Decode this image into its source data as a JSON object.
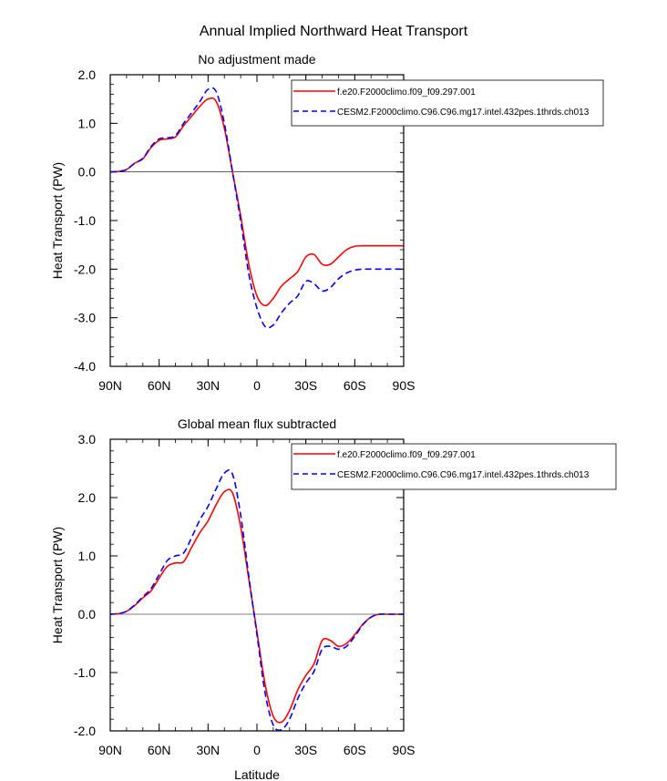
{
  "figure": {
    "title": "Annual Implied Northward Heat Transport"
  },
  "chart_data": [
    {
      "type": "line",
      "title": "No adjustment made",
      "xlabel": "",
      "ylabel": "Heat Transport (PW)",
      "x_ticks": [
        "90N",
        "60N",
        "30N",
        "0",
        "30S",
        "60S",
        "90S"
      ],
      "x": [
        90,
        85,
        80,
        75,
        70,
        65,
        60,
        55,
        50,
        45,
        40,
        35,
        30,
        25,
        20,
        15,
        10,
        5,
        0,
        -5,
        -10,
        -15,
        -20,
        -25,
        -30,
        -35,
        -40,
        -45,
        -50,
        -55,
        -60,
        -65,
        -70,
        -75,
        -80,
        -85,
        -90
      ],
      "xlim": [
        90,
        -90
      ],
      "ylim": [
        -4.0,
        2.0
      ],
      "y_ticks": [
        "2.0",
        "1.0",
        "0.0",
        "-1.0",
        "-2.0",
        "-3.0",
        "-4.0"
      ],
      "y_tick_values": [
        2.0,
        1.0,
        0.0,
        -1.0,
        -2.0,
        -3.0,
        -4.0
      ],
      "series": [
        {
          "name": "f.e20.F2000climo.f09_f09.297.001",
          "color": "#ff0000",
          "dash": "solid",
          "values": [
            0.0,
            0.01,
            0.05,
            0.18,
            0.27,
            0.5,
            0.65,
            0.68,
            0.72,
            0.95,
            1.15,
            1.35,
            1.5,
            1.45,
            0.9,
            0.0,
            -0.9,
            -1.9,
            -2.55,
            -2.75,
            -2.6,
            -2.35,
            -2.2,
            -2.05,
            -1.75,
            -1.7,
            -1.9,
            -1.9,
            -1.75,
            -1.6,
            -1.53,
            -1.52,
            -1.52,
            -1.52,
            -1.52,
            -1.52,
            -1.52
          ]
        },
        {
          "name": "CESM2.F2000climo.C96.C96.mg17.intel.432pes.1thrds.ch013",
          "color": "#0000ff",
          "dash": "dashed",
          "values": [
            0.0,
            0.01,
            0.05,
            0.18,
            0.28,
            0.52,
            0.68,
            0.7,
            0.75,
            1.0,
            1.22,
            1.45,
            1.7,
            1.65,
            1.0,
            0.0,
            -1.0,
            -2.1,
            -2.8,
            -3.18,
            -3.15,
            -2.9,
            -2.7,
            -2.55,
            -2.25,
            -2.3,
            -2.45,
            -2.38,
            -2.2,
            -2.08,
            -2.02,
            -2.0,
            -2.0,
            -2.0,
            -2.0,
            -2.0,
            -2.0
          ]
        }
      ]
    },
    {
      "type": "line",
      "title": "Global mean flux subtracted",
      "xlabel": "Latitude",
      "ylabel": "Heat Transport (PW)",
      "x_ticks": [
        "90N",
        "60N",
        "30N",
        "0",
        "30S",
        "60S",
        "90S"
      ],
      "x": [
        90,
        85,
        80,
        75,
        70,
        65,
        60,
        55,
        50,
        45,
        40,
        35,
        30,
        25,
        20,
        15,
        10,
        5,
        0,
        -5,
        -10,
        -15,
        -20,
        -25,
        -30,
        -35,
        -40,
        -45,
        -50,
        -55,
        -60,
        -65,
        -70,
        -75,
        -80,
        -85,
        -90
      ],
      "xlim": [
        90,
        -90
      ],
      "ylim": [
        -2.0,
        3.0
      ],
      "y_ticks": [
        "3.0",
        "2.0",
        "1.0",
        "0.0",
        "-1.0",
        "-2.0"
      ],
      "y_tick_values": [
        3.0,
        2.0,
        1.0,
        0.0,
        -1.0,
        -2.0
      ],
      "series": [
        {
          "name": "f.e20.F2000climo.f09_f09.297.001",
          "color": "#ff0000",
          "dash": "solid",
          "values": [
            0.0,
            0.01,
            0.05,
            0.15,
            0.28,
            0.4,
            0.62,
            0.82,
            0.88,
            0.9,
            1.15,
            1.4,
            1.6,
            1.88,
            2.1,
            2.08,
            1.5,
            0.6,
            -0.3,
            -1.2,
            -1.75,
            -1.85,
            -1.65,
            -1.3,
            -1.05,
            -0.85,
            -0.45,
            -0.45,
            -0.55,
            -0.5,
            -0.35,
            -0.17,
            -0.05,
            0.0,
            0.0,
            0.0,
            0.0
          ]
        },
        {
          "name": "CESM2.F2000climo.C96.C96.mg17.intel.432pes.1thrds.ch013",
          "color": "#0000ff",
          "dash": "dashed",
          "values": [
            0.0,
            0.01,
            0.05,
            0.16,
            0.3,
            0.44,
            0.68,
            0.92,
            1.0,
            1.05,
            1.32,
            1.62,
            1.85,
            2.15,
            2.42,
            2.4,
            1.7,
            0.65,
            -0.35,
            -1.35,
            -1.9,
            -1.98,
            -1.8,
            -1.45,
            -1.18,
            -0.98,
            -0.6,
            -0.55,
            -0.6,
            -0.55,
            -0.38,
            -0.18,
            -0.05,
            0.0,
            0.0,
            0.0,
            0.0
          ]
        }
      ]
    }
  ]
}
